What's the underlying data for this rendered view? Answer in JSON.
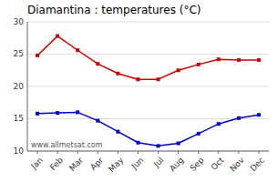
{
  "chart_data": {
    "type": "line",
    "title": "Diamantina : temperatures (°C)",
    "categories": [
      "Jan",
      "Feb",
      "Mar",
      "Apr",
      "May",
      "Jun",
      "Jul",
      "Aug",
      "Sep",
      "Oct",
      "Nov",
      "Dec"
    ],
    "series": [
      {
        "color": "#cc0000",
        "marker": "square",
        "line_style": "solid",
        "values": [
          24.8,
          27.8,
          25.6,
          23.5,
          22.0,
          21.1,
          21.1,
          22.5,
          23.4,
          24.2,
          24.1,
          24.1
        ]
      },
      {
        "color": "#0000cc",
        "marker": "square",
        "line_style": "solid",
        "values": [
          15.8,
          15.9,
          16.0,
          14.7,
          13.0,
          11.3,
          10.8,
          11.2,
          12.7,
          14.2,
          15.1,
          15.6
        ]
      }
    ],
    "ylim": [
      10,
      30
    ],
    "yticks": [
      10,
      15,
      20,
      25,
      30
    ],
    "grid": true,
    "annotations": [
      "www.allmetsat.com"
    ]
  }
}
